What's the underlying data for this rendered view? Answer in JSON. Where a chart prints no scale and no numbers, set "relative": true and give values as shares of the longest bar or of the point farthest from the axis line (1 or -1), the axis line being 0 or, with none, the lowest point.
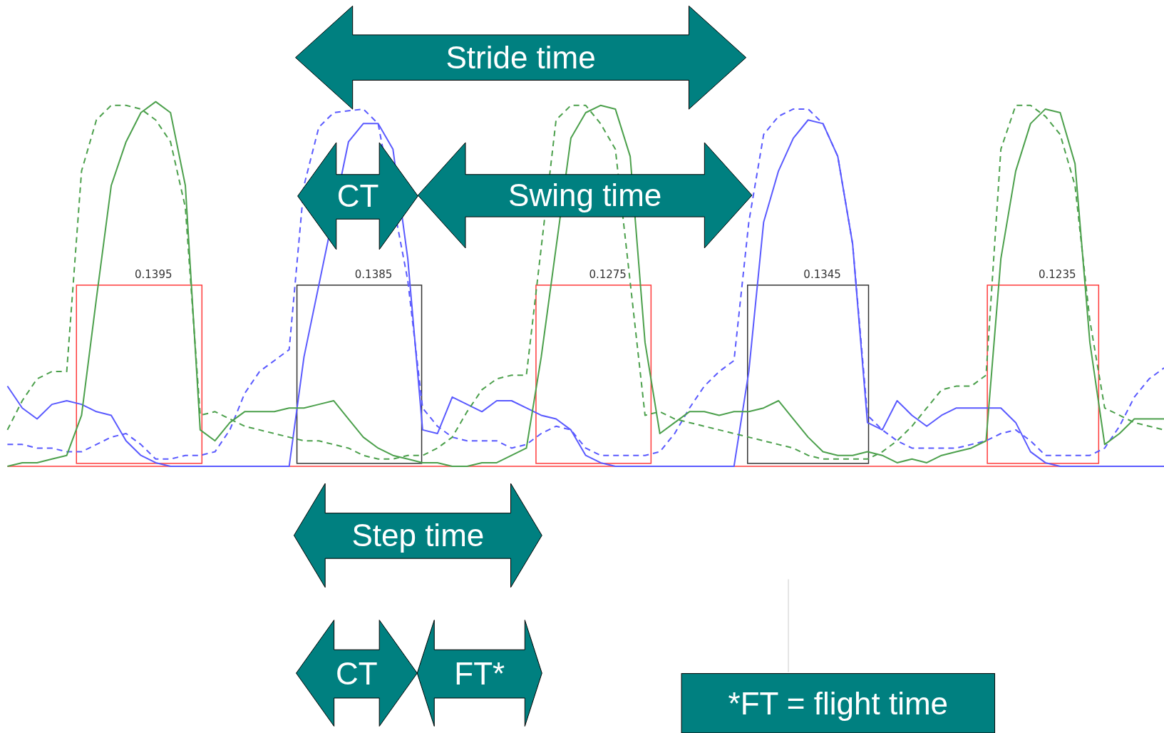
{
  "chart_data": {
    "type": "line",
    "relative": true,
    "marker": "none",
    "legend": false,
    "categories": [
      null,
      null,
      null,
      null,
      null,
      null,
      null,
      null,
      null,
      null,
      null,
      null,
      null,
      null,
      null,
      null,
      null,
      null,
      null,
      null,
      null,
      null,
      null,
      null,
      null,
      null,
      null,
      null,
      null,
      null,
      null,
      null,
      null,
      null,
      null,
      null,
      null,
      null,
      null,
      null,
      null,
      null,
      null,
      null,
      null,
      null,
      null,
      null,
      null,
      null,
      null,
      null,
      null,
      null,
      null,
      null,
      null,
      null,
      null,
      null,
      null,
      null,
      null,
      null,
      null,
      null,
      null,
      null,
      null,
      null,
      null,
      null,
      null,
      null,
      null,
      null,
      null,
      null,
      null
    ],
    "series": [
      {
        "color": "#4ca04c",
        "line_style": "solid",
        "values": [
          0,
          0.01,
          0.01,
          0.02,
          0.03,
          0.14,
          0.46,
          0.77,
          0.89,
          0.97,
          1.0,
          0.97,
          0.77,
          0.1,
          0.07,
          0.12,
          0.15,
          0.15,
          0.15,
          0.16,
          0.16,
          0.17,
          0.18,
          0.13,
          0.08,
          0.05,
          0.03,
          0.02,
          0.01,
          0.01,
          0,
          0,
          0.01,
          0.01,
          0.03,
          0.05,
          0.3,
          null,
          0.9,
          0.97,
          0.99,
          0.98,
          0.85,
          0.34,
          0.09,
          0.12,
          0.15,
          0.15,
          0.14,
          0.15,
          0.15,
          0.16,
          0.18,
          0.13,
          0.08,
          0.04,
          0.03,
          0.03,
          0.04,
          0.03,
          0.01,
          0.02,
          0.01,
          0.03,
          0.04,
          0.05,
          0.07,
          0.57,
          0.81,
          0.94,
          0.98,
          0.97,
          0.83,
          0.34,
          0.06,
          0.09,
          0.13,
          0.13,
          0.13
        ]
      },
      {
        "color": "#4ca04c",
        "line_style": "dashed",
        "values": [
          0.1,
          0.18,
          0.24,
          0.26,
          0.26,
          0.81,
          0.95,
          0.99,
          0.99,
          0.98,
          0.95,
          0.89,
          0.71,
          0.14,
          0.15,
          0.13,
          0.11,
          0.1,
          0.09,
          0.08,
          0.07,
          0.07,
          0.06,
          0.05,
          0.03,
          0.02,
          0.02,
          0.03,
          0.03,
          0.05,
          0.08,
          0.15,
          0.21,
          0.24,
          0.25,
          0.25,
          null,
          0.95,
          0.99,
          0.99,
          0.94,
          0.87,
          null,
          0.14,
          0.15,
          0.13,
          0.12,
          0.11,
          0.1,
          0.09,
          0.08,
          0.07,
          0.06,
          0.05,
          0.03,
          0.02,
          0.02,
          0.02,
          0.02,
          0.04,
          0.07,
          0.11,
          0.16,
          0.21,
          0.22,
          0.22,
          0.25,
          0.87,
          0.99,
          0.99,
          0.96,
          0.91,
          0.77,
          0.4,
          0.16,
          0.14,
          0.12,
          0.11,
          0.1
        ]
      },
      {
        "color": "#5a5aff",
        "line_style": "solid",
        "values": [
          0.22,
          0.16,
          0.13,
          0.17,
          0.18,
          0.17,
          0.15,
          0.14,
          0.07,
          0.03,
          0.01,
          0,
          0,
          0,
          0,
          0,
          0,
          0,
          0,
          0,
          0.3,
          null,
          null,
          0.89,
          0.94,
          0.94,
          0.87,
          0.57,
          0.1,
          0.09,
          0.19,
          0.17,
          0.15,
          0.18,
          0.18,
          0.16,
          0.14,
          0.13,
          0.1,
          0.03,
          0.01,
          0,
          0,
          0,
          0,
          0,
          0,
          0,
          0,
          0,
          0.26,
          0.67,
          0.81,
          0.9,
          0.95,
          0.94,
          0.85,
          0.61,
          0.12,
          0.1,
          0.18,
          0.14,
          0.11,
          0.14,
          0.16,
          0.16,
          0.16,
          0.16,
          0.12,
          0.04,
          0.01,
          0,
          0,
          0,
          0,
          0,
          0,
          0,
          0
        ]
      },
      {
        "color": "#5a5aff",
        "line_style": "dashed",
        "values": [
          0.06,
          0.06,
          0.05,
          0.05,
          0.04,
          0.04,
          0.06,
          0.08,
          0.09,
          0.06,
          0.02,
          0.02,
          0.03,
          0.03,
          0.04,
          0.1,
          0.2,
          0.26,
          0.29,
          0.32,
          0.77,
          0.93,
          0.97,
          null,
          0.98,
          0.94,
          null,
          0.51,
          0.16,
          0.11,
          0.08,
          0.07,
          0.07,
          0.07,
          0.05,
          0.06,
          0.09,
          0.11,
          0.1,
          0.05,
          0.03,
          0.03,
          0.03,
          0.03,
          0.04,
          0.09,
          0.16,
          0.22,
          0.26,
          0.29,
          0.67,
          0.91,
          0.96,
          0.98,
          0.98,
          0.94,
          0.85,
          0.61,
          0.14,
          0.1,
          0.07,
          0.05,
          0.05,
          0.05,
          0.05,
          0.06,
          0.07,
          0.09,
          0.1,
          0.07,
          0.03,
          0.03,
          0.03,
          0.03,
          0.05,
          0.11,
          0.19,
          0.24,
          0.27
        ]
      }
    ],
    "annotations": [
      "Stride time",
      "CT",
      "Swing time",
      "Step time",
      "CT",
      "FT*",
      "*FT = flight time",
      "0.1395",
      "0.1385",
      "0.1275",
      "0.1345",
      "0.1235"
    ]
  }
}
